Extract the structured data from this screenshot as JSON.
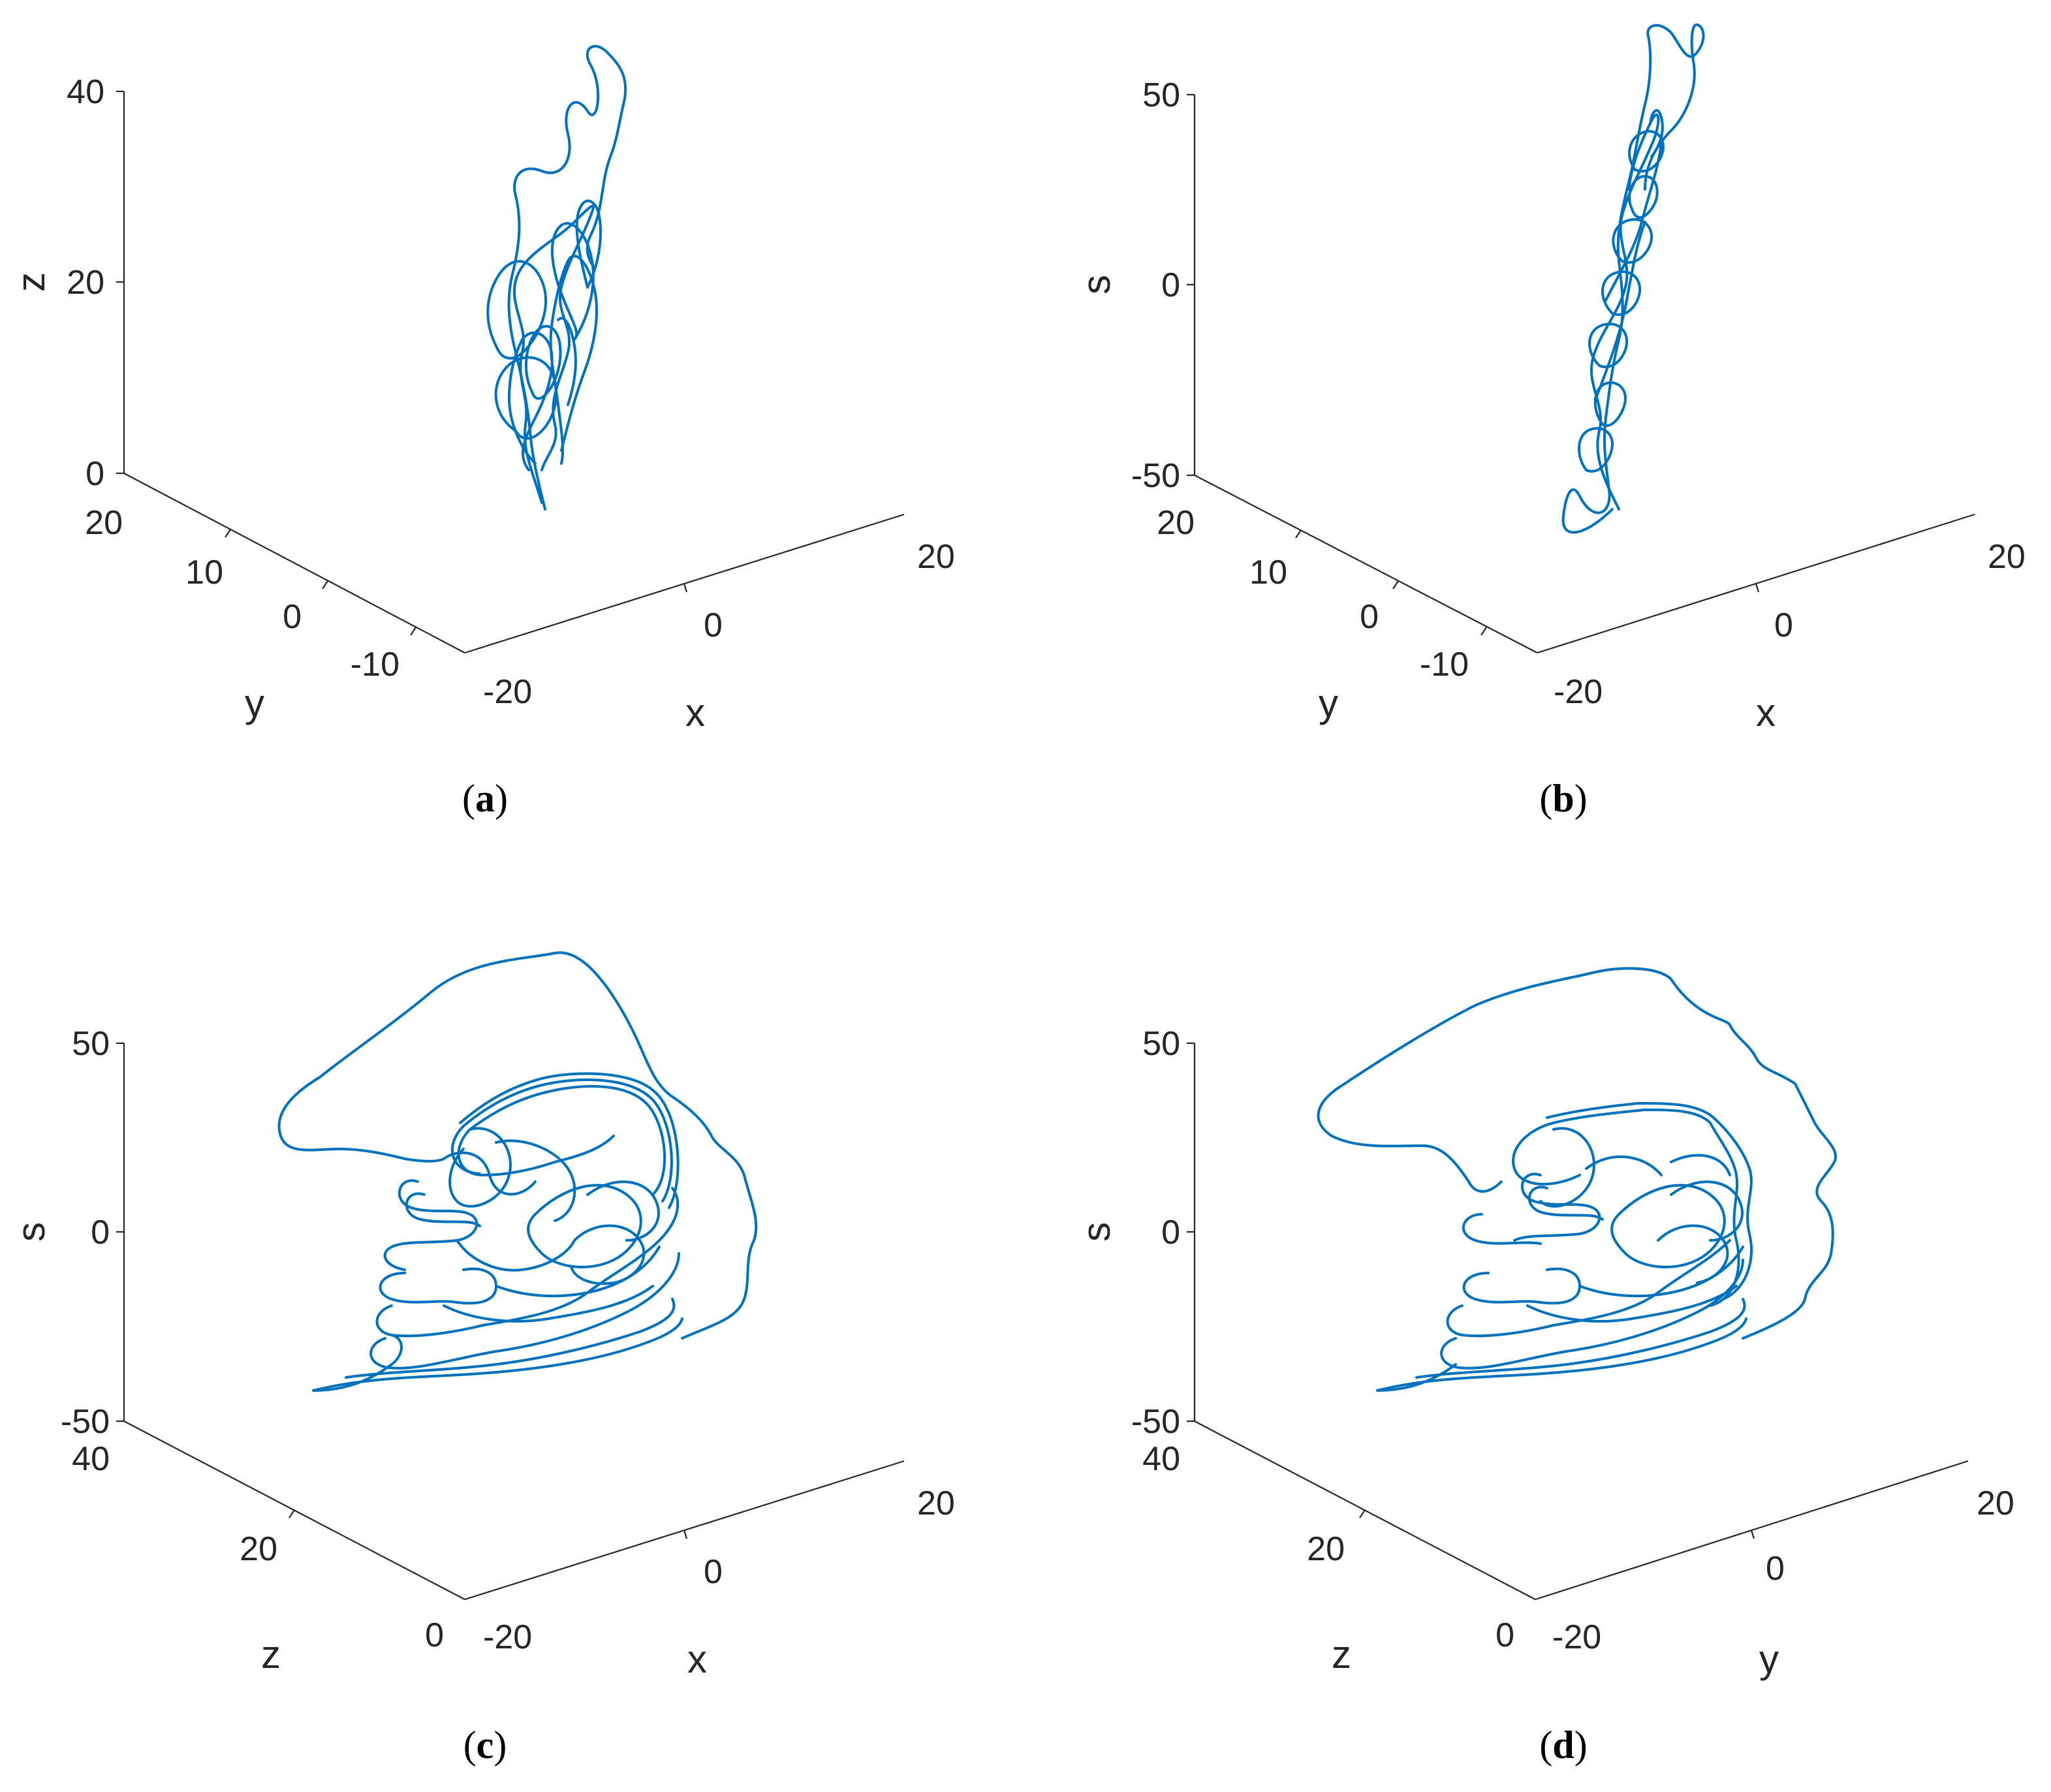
{
  "figure": {
    "line_color": "#0072BD",
    "axis_color": "#262626"
  },
  "chart_data": [
    {
      "type": "line",
      "subtype": "3d-trajectory",
      "caption": {
        "open": "(",
        "letter": "a",
        "close": ")"
      },
      "xlabel": "x",
      "ylabel": "y",
      "zlabel": "z",
      "x_ticks": [
        "-20",
        "0",
        "20"
      ],
      "y_ticks": [
        "-10",
        "0",
        "10",
        "20"
      ],
      "z_ticks": [
        "0",
        "20",
        "40"
      ],
      "xlim": [
        -20,
        20
      ],
      "ylim": [
        -15,
        20
      ],
      "zlim": [
        0,
        40
      ],
      "grid": false
    },
    {
      "type": "line",
      "subtype": "3d-trajectory",
      "caption": {
        "open": "(",
        "letter": "b",
        "close": ")"
      },
      "xlabel": "x",
      "ylabel": "y",
      "zlabel": "s",
      "x_ticks": [
        "-20",
        "0",
        "20"
      ],
      "y_ticks": [
        "-10",
        "0",
        "10",
        "20"
      ],
      "z_ticks": [
        "-50",
        "0",
        "50"
      ],
      "xlim": [
        -20,
        20
      ],
      "ylim": [
        -15,
        20
      ],
      "zlim": [
        -50,
        50
      ],
      "grid": false
    },
    {
      "type": "line",
      "subtype": "3d-trajectory",
      "caption": {
        "open": "(",
        "letter": "c",
        "close": ")"
      },
      "xlabel": "x",
      "ylabel": "z",
      "zlabel": "s",
      "x_ticks": [
        "-20",
        "0",
        "20"
      ],
      "y_ticks": [
        "0",
        "20",
        "40"
      ],
      "z_ticks": [
        "-50",
        "0",
        "50"
      ],
      "xlim": [
        -20,
        20
      ],
      "ylim": [
        0,
        40
      ],
      "zlim": [
        -50,
        50
      ],
      "grid": false
    },
    {
      "type": "line",
      "subtype": "3d-trajectory",
      "caption": {
        "open": "(",
        "letter": "d",
        "close": ")"
      },
      "xlabel": "y",
      "ylabel": "z",
      "zlabel": "s",
      "x_ticks": [
        "-20",
        "0",
        "20"
      ],
      "y_ticks": [
        "0",
        "20",
        "40"
      ],
      "z_ticks": [
        "-50",
        "0",
        "50"
      ],
      "xlim": [
        -20,
        20
      ],
      "ylim": [
        0,
        40
      ],
      "zlim": [
        -50,
        50
      ],
      "grid": false
    }
  ]
}
